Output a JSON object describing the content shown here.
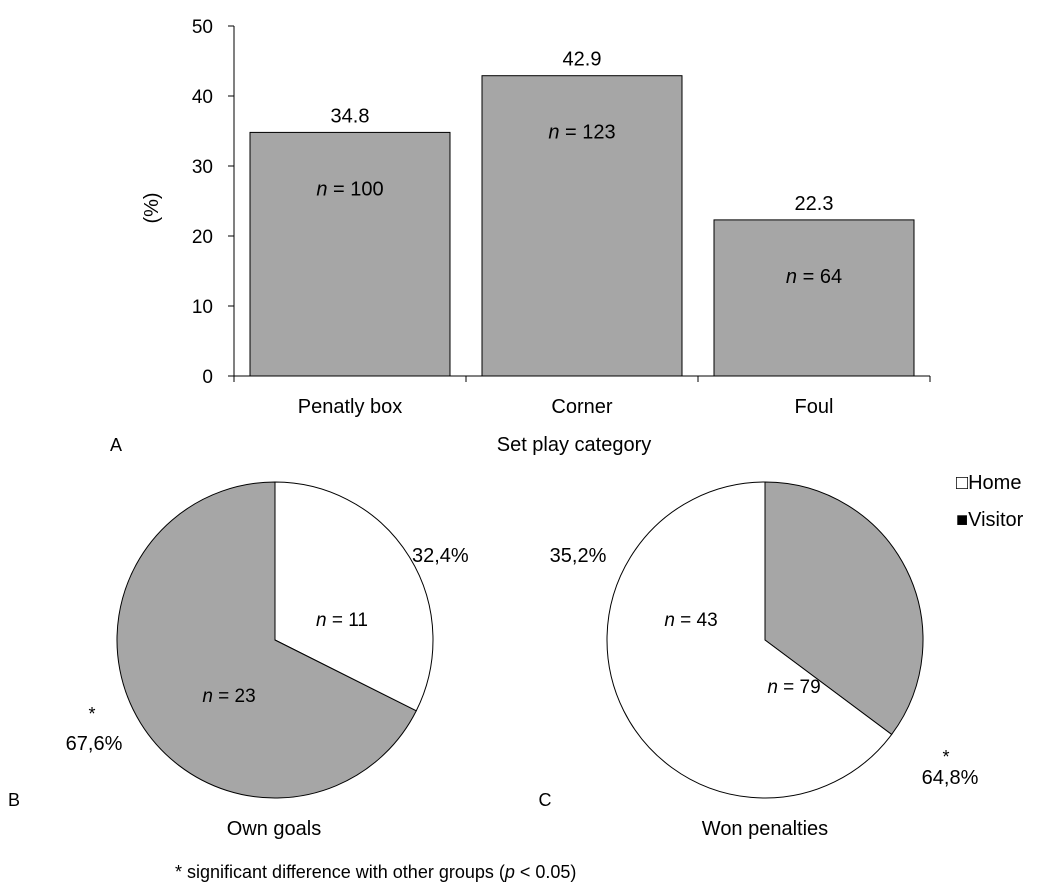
{
  "colors": {
    "gray": "#a6a6a6",
    "white": "#ffffff",
    "outline": "#000000"
  },
  "chart_data": [
    {
      "type": "bar",
      "panel_label": "A",
      "categories": [
        "Penatly box",
        "Corner",
        "Foul"
      ],
      "values": [
        34.8,
        42.9,
        22.3
      ],
      "value_labels": [
        "34.8",
        "42.9",
        "22.3"
      ],
      "n_labels": [
        "100",
        "123",
        "64"
      ],
      "n_prefix": "n",
      "n_eq": " = ",
      "xlabel": "Set play category",
      "ylabel": "(%)",
      "ylim": [
        0,
        50
      ],
      "yticks": [
        "0",
        "10",
        "20",
        "30",
        "40",
        "50"
      ],
      "grid": false
    },
    {
      "type": "pie",
      "panel_label": "B",
      "title": "Own goals",
      "slices": [
        {
          "name": "Home",
          "value": 32.4,
          "label": "32,4%",
          "n": "11",
          "significant": false
        },
        {
          "name": "Visitor",
          "value": 67.6,
          "label": "67,6%",
          "n": "23",
          "significant": true
        }
      ]
    },
    {
      "type": "pie",
      "panel_label": "C",
      "title": "Won penalties",
      "slices": [
        {
          "name": "Home",
          "value": 64.8,
          "label": "64,8%",
          "n": "79",
          "significant": true
        },
        {
          "name": "Visitor",
          "value": 35.2,
          "label": "35,2%",
          "n": "43",
          "significant": false
        }
      ]
    }
  ],
  "legend": {
    "placement": "top-right",
    "items": [
      {
        "marker": "□",
        "label": "Home"
      },
      {
        "marker": "■",
        "label": "Visitor"
      }
    ]
  },
  "significance_marker": "*",
  "footnote": {
    "star": "*",
    "before": " significant difference with other groups (",
    "p": "p",
    "after": " < 0.05)"
  }
}
